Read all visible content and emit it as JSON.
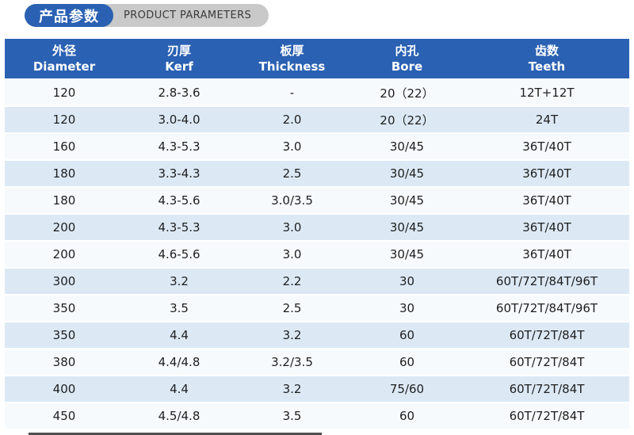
{
  "header": {
    "title_cn": "产品参数",
    "title_en": "PRODUCT PARAMETERS"
  },
  "colors": {
    "primary_blue": "#2a61b3",
    "pill_gray": "#c9c9c9",
    "row_light": "#f7fafd",
    "row_alt_blue": "#dce9f5",
    "header_text": "#ffffff",
    "body_text": "#1e1e1e"
  },
  "table": {
    "headers": [
      {
        "cn": "外径",
        "en": "Diameter"
      },
      {
        "cn": "刃厚",
        "en": "Kerf"
      },
      {
        "cn": "板厚",
        "en": "Thickness"
      },
      {
        "cn": "内孔",
        "en": "Bore"
      },
      {
        "cn": "齿数",
        "en": "Teeth"
      }
    ],
    "rows": [
      [
        "120",
        "2.8-3.6",
        "-",
        "20（22）",
        "12T+12T"
      ],
      [
        "120",
        "3.0-4.0",
        "2.0",
        "20（22）",
        "24T"
      ],
      [
        "160",
        "4.3-5.3",
        "3.0",
        "30/45",
        "36T/40T"
      ],
      [
        "180",
        "3.3-4.3",
        "2.5",
        "30/45",
        "36T/40T"
      ],
      [
        "180",
        "4.3-5.6",
        "3.0/3.5",
        "30/45",
        "36T/40T"
      ],
      [
        "200",
        "4.3-5.3",
        "3.0",
        "30/45",
        "36T/40T"
      ],
      [
        "200",
        "4.6-5.6",
        "3.0",
        "30/45",
        "36T/40T"
      ],
      [
        "300",
        "3.2",
        "2.2",
        "30",
        "60T/72T/84T/96T"
      ],
      [
        "350",
        "3.5",
        "2.5",
        "30",
        "60T/72T/84T/96T"
      ],
      [
        "350",
        "4.4",
        "3.2",
        "60",
        "60T/72T/84T"
      ],
      [
        "380",
        "4.4/4.8",
        "3.2/3.5",
        "60",
        "60T/72T/84T"
      ],
      [
        "400",
        "4.4",
        "3.2",
        "75/60",
        "60T/72T/84T"
      ],
      [
        "450",
        "4.5/4.8",
        "3.5",
        "60",
        "60T/72T/84T"
      ]
    ]
  }
}
